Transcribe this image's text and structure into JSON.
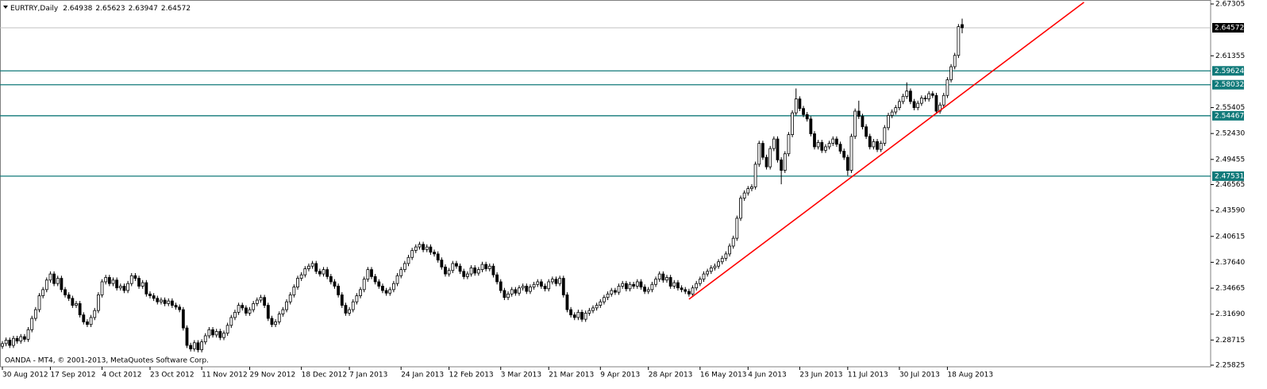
{
  "chart_data": {
    "type": "candlestick",
    "title": "EURTRY,Daily",
    "note": "OANDA - MT4, © 2001-2013, MetaQuotes Software Corp.",
    "categories": [
      "30 Aug 2012",
      null,
      null,
      null,
      null,
      null,
      null,
      null,
      null,
      null,
      null,
      null,
      null,
      "17 Sep 2012",
      null,
      null,
      null,
      null,
      null,
      null,
      null,
      null,
      null,
      null,
      null,
      null,
      null,
      "4 Oct 2012",
      null,
      null,
      null,
      null,
      null,
      null,
      null,
      null,
      null,
      null,
      null,
      null,
      "23 Oct 2012",
      null,
      null,
      null,
      null,
      null,
      null,
      null,
      null,
      null,
      null,
      null,
      null,
      null,
      "11 Nov 2012",
      null,
      null,
      null,
      null,
      null,
      null,
      null,
      null,
      null,
      null,
      null,
      null,
      "29 Nov 2012",
      null,
      null,
      null,
      null,
      null,
      null,
      null,
      null,
      null,
      null,
      null,
      null,
      null,
      "18 Dec 2012",
      null,
      null,
      null,
      null,
      null,
      null,
      null,
      null,
      null,
      null,
      null,
      null,
      "7 Jan 2013",
      null,
      null,
      null,
      null,
      null,
      null,
      null,
      null,
      null,
      null,
      null,
      null,
      null,
      "24 Jan 2013",
      null,
      null,
      null,
      null,
      null,
      null,
      null,
      null,
      null,
      null,
      null,
      null,
      "12 Feb 2013",
      null,
      null,
      null,
      null,
      null,
      null,
      null,
      null,
      null,
      null,
      null,
      null,
      null,
      "3 Mar 2013",
      null,
      null,
      null,
      null,
      null,
      null,
      null,
      null,
      null,
      null,
      null,
      null,
      "21 Mar 2013",
      null,
      null,
      null,
      null,
      null,
      null,
      null,
      null,
      null,
      null,
      null,
      null,
      null,
      "9 Apr 2013",
      null,
      null,
      null,
      null,
      null,
      null,
      null,
      null,
      null,
      null,
      null,
      null,
      "28 Apr 2013",
      null,
      null,
      null,
      null,
      null,
      null,
      null,
      null,
      null,
      null,
      null,
      null,
      null,
      "16 May 2013",
      null,
      null,
      null,
      null,
      null,
      null,
      null,
      null,
      null,
      null,
      null,
      null,
      "4 Jun 2013",
      null,
      null,
      null,
      null,
      null,
      null,
      null,
      null,
      null,
      null,
      null,
      null,
      null,
      "23 Jun 2013",
      null,
      null,
      null,
      null,
      null,
      null,
      null,
      null,
      null,
      null,
      null,
      null,
      "11 Jul 2013",
      null,
      null,
      null,
      null,
      null,
      null,
      null,
      null,
      null,
      null,
      null,
      null,
      null,
      "30 Jul 2013",
      null,
      null,
      null,
      null,
      null,
      null,
      null,
      null,
      null,
      null,
      null,
      null,
      "18 Aug 2013",
      null,
      null,
      null,
      null
    ],
    "open": [
      2.28,
      2.283,
      2.287,
      2.281,
      2.289,
      2.286,
      2.291,
      2.288,
      2.299,
      2.312,
      2.322,
      2.338,
      2.345,
      2.356,
      2.363,
      2.352,
      2.358,
      2.345,
      2.339,
      2.335,
      2.327,
      2.329,
      2.316,
      2.308,
      2.305,
      2.313,
      2.321,
      2.339,
      2.354,
      2.359,
      2.352,
      2.356,
      2.347,
      2.349,
      2.344,
      2.352,
      2.361,
      2.358,
      2.349,
      2.353,
      2.34,
      2.338,
      2.335,
      2.331,
      2.333,
      2.329,
      2.332,
      2.327,
      2.325,
      2.322,
      2.301,
      2.281,
      2.277,
      2.284,
      2.276,
      2.285,
      2.292,
      2.299,
      2.293,
      2.297,
      2.29,
      2.295,
      2.304,
      2.313,
      2.319,
      2.327,
      2.324,
      2.318,
      2.322,
      2.329,
      2.333,
      2.336,
      2.327,
      2.312,
      2.305,
      2.308,
      2.317,
      2.322,
      2.331,
      2.339,
      2.348,
      2.358,
      2.362,
      2.369,
      2.372,
      2.375,
      2.366,
      2.363,
      2.368,
      2.36,
      2.354,
      2.349,
      2.339,
      2.327,
      2.318,
      2.322,
      2.331,
      2.338,
      2.345,
      2.357,
      2.368,
      2.36,
      2.354,
      2.349,
      2.344,
      2.341,
      2.345,
      2.352,
      2.361,
      2.368,
      2.375,
      2.382,
      2.39,
      2.394,
      2.397,
      2.391,
      2.394,
      2.388,
      2.386,
      2.379,
      2.371,
      2.363,
      2.367,
      2.375,
      2.372,
      2.366,
      2.36,
      2.363,
      2.37,
      2.364,
      2.368,
      2.374,
      2.369,
      2.372,
      2.362,
      2.354,
      2.344,
      2.336,
      2.34,
      2.345,
      2.341,
      2.347,
      2.349,
      2.343,
      2.348,
      2.351,
      2.354,
      2.349,
      2.346,
      2.354,
      2.357,
      2.352,
      2.358,
      2.339,
      2.322,
      2.316,
      2.313,
      2.319,
      2.311,
      2.318,
      2.321,
      2.324,
      2.327,
      2.331,
      2.336,
      2.34,
      2.344,
      2.342,
      2.349,
      2.352,
      2.346,
      2.351,
      2.349,
      2.354,
      2.348,
      2.343,
      2.345,
      2.351,
      2.357,
      2.363,
      2.356,
      2.359,
      2.349,
      2.353,
      2.347,
      2.345,
      2.343,
      2.34,
      2.347,
      2.352,
      2.357,
      2.363,
      2.366,
      2.37,
      2.372,
      2.377,
      2.381,
      2.386,
      2.395,
      2.404,
      2.427,
      2.45,
      2.456,
      2.461,
      2.463,
      2.489,
      2.513,
      2.497,
      2.486,
      2.507,
      2.518,
      2.494,
      2.482,
      2.501,
      2.523,
      2.548,
      2.564,
      2.553,
      2.546,
      2.541,
      2.524,
      2.509,
      2.514,
      2.505,
      2.509,
      2.513,
      2.518,
      2.512,
      2.504,
      2.497,
      2.482,
      2.521,
      2.55,
      2.544,
      2.532,
      2.521,
      2.509,
      2.515,
      2.506,
      2.513,
      2.531,
      2.545,
      2.549,
      2.554,
      2.561,
      2.567,
      2.573,
      2.561,
      2.554,
      2.559,
      2.565,
      2.564,
      2.57,
      2.568,
      2.55,
      2.557,
      2.568,
      2.586,
      2.601,
      2.614,
      2.64938
    ],
    "high": [
      2.286,
      2.29,
      2.29,
      2.292,
      2.292,
      2.294,
      2.294,
      2.302,
      2.315,
      2.325,
      2.341,
      2.348,
      2.359,
      2.366,
      2.366,
      2.361,
      2.361,
      2.348,
      2.342,
      2.338,
      2.332,
      2.332,
      2.319,
      2.311,
      2.316,
      2.324,
      2.342,
      2.357,
      2.362,
      2.362,
      2.359,
      2.359,
      2.352,
      2.352,
      2.355,
      2.364,
      2.364,
      2.361,
      2.356,
      2.356,
      2.343,
      2.341,
      2.338,
      2.336,
      2.336,
      2.335,
      2.335,
      2.33,
      2.328,
      2.325,
      2.304,
      2.284,
      2.287,
      2.287,
      2.288,
      2.295,
      2.302,
      2.302,
      2.3,
      2.3,
      2.298,
      2.307,
      2.316,
      2.322,
      2.33,
      2.33,
      2.327,
      2.325,
      2.332,
      2.336,
      2.339,
      2.339,
      2.33,
      2.315,
      2.311,
      2.32,
      2.325,
      2.334,
      2.342,
      2.351,
      2.361,
      2.365,
      2.372,
      2.375,
      2.378,
      2.378,
      2.369,
      2.371,
      2.371,
      2.363,
      2.357,
      2.352,
      2.342,
      2.33,
      2.325,
      2.334,
      2.341,
      2.348,
      2.36,
      2.371,
      2.371,
      2.363,
      2.357,
      2.352,
      2.347,
      2.348,
      2.355,
      2.364,
      2.371,
      2.378,
      2.385,
      2.393,
      2.397,
      2.4,
      2.4,
      2.397,
      2.397,
      2.391,
      2.389,
      2.382,
      2.374,
      2.37,
      2.378,
      2.378,
      2.375,
      2.369,
      2.366,
      2.373,
      2.373,
      2.371,
      2.377,
      2.377,
      2.375,
      2.375,
      2.365,
      2.357,
      2.347,
      2.343,
      2.348,
      2.348,
      2.35,
      2.352,
      2.352,
      2.351,
      2.354,
      2.357,
      2.357,
      2.352,
      2.357,
      2.36,
      2.36,
      2.361,
      2.361,
      2.342,
      2.325,
      2.319,
      2.322,
      2.322,
      2.321,
      2.324,
      2.327,
      2.33,
      2.334,
      2.339,
      2.343,
      2.347,
      2.347,
      2.352,
      2.355,
      2.355,
      2.354,
      2.354,
      2.357,
      2.357,
      2.351,
      2.348,
      2.354,
      2.36,
      2.366,
      2.366,
      2.362,
      2.362,
      2.356,
      2.356,
      2.35,
      2.348,
      2.346,
      2.35,
      2.355,
      2.36,
      2.366,
      2.369,
      2.373,
      2.375,
      2.38,
      2.384,
      2.389,
      2.398,
      2.407,
      2.43,
      2.453,
      2.459,
      2.464,
      2.466,
      2.492,
      2.516,
      2.516,
      2.5,
      2.51,
      2.521,
      2.521,
      2.497,
      2.504,
      2.526,
      2.551,
      2.576,
      2.567,
      2.556,
      2.549,
      2.544,
      2.527,
      2.517,
      2.517,
      2.512,
      2.516,
      2.521,
      2.521,
      2.515,
      2.507,
      2.5,
      2.524,
      2.553,
      2.562,
      2.547,
      2.535,
      2.524,
      2.518,
      2.518,
      2.516,
      2.534,
      2.548,
      2.552,
      2.557,
      2.564,
      2.57,
      2.583,
      2.576,
      2.564,
      2.562,
      2.568,
      2.568,
      2.573,
      2.573,
      2.571,
      2.56,
      2.571,
      2.589,
      2.604,
      2.617,
      2.65,
      2.65623
    ],
    "low": [
      2.277,
      2.28,
      2.278,
      2.278,
      2.283,
      2.283,
      2.285,
      2.285,
      2.296,
      2.309,
      2.319,
      2.335,
      2.342,
      2.353,
      2.349,
      2.349,
      2.342,
      2.336,
      2.332,
      2.324,
      2.324,
      2.313,
      2.305,
      2.302,
      2.302,
      2.31,
      2.318,
      2.336,
      2.351,
      2.349,
      2.349,
      2.344,
      2.344,
      2.341,
      2.341,
      2.349,
      2.355,
      2.346,
      2.346,
      2.337,
      2.335,
      2.332,
      2.328,
      2.328,
      2.326,
      2.326,
      2.324,
      2.322,
      2.319,
      2.298,
      2.278,
      2.274,
      2.274,
      2.273,
      2.273,
      2.282,
      2.289,
      2.29,
      2.29,
      2.287,
      2.287,
      2.292,
      2.301,
      2.31,
      2.316,
      2.321,
      2.315,
      2.315,
      2.319,
      2.326,
      2.33,
      2.324,
      2.309,
      2.302,
      2.302,
      2.305,
      2.314,
      2.319,
      2.328,
      2.336,
      2.345,
      2.355,
      2.359,
      2.366,
      2.369,
      2.363,
      2.36,
      2.36,
      2.357,
      2.351,
      2.346,
      2.336,
      2.324,
      2.315,
      2.315,
      2.319,
      2.328,
      2.335,
      2.342,
      2.354,
      2.357,
      2.351,
      2.346,
      2.341,
      2.338,
      2.338,
      2.342,
      2.349,
      2.358,
      2.365,
      2.372,
      2.379,
      2.387,
      2.391,
      2.388,
      2.388,
      2.385,
      2.383,
      2.376,
      2.368,
      2.36,
      2.36,
      2.364,
      2.369,
      2.363,
      2.357,
      2.357,
      2.36,
      2.361,
      2.361,
      2.365,
      2.366,
      2.366,
      2.359,
      2.351,
      2.341,
      2.333,
      2.333,
      2.337,
      2.338,
      2.338,
      2.344,
      2.34,
      2.34,
      2.345,
      2.348,
      2.346,
      2.343,
      2.343,
      2.351,
      2.349,
      2.349,
      2.336,
      2.319,
      2.313,
      2.31,
      2.31,
      2.308,
      2.308,
      2.315,
      2.318,
      2.321,
      2.324,
      2.328,
      2.333,
      2.337,
      2.339,
      2.339,
      2.346,
      2.343,
      2.343,
      2.346,
      2.346,
      2.345,
      2.34,
      2.34,
      2.342,
      2.348,
      2.354,
      2.353,
      2.353,
      2.346,
      2.346,
      2.344,
      2.342,
      2.34,
      2.337,
      2.337,
      2.344,
      2.349,
      2.354,
      2.36,
      2.363,
      2.367,
      2.369,
      2.374,
      2.378,
      2.383,
      2.392,
      2.401,
      2.424,
      2.447,
      2.453,
      2.458,
      2.46,
      2.486,
      2.494,
      2.483,
      2.483,
      2.504,
      2.491,
      2.466,
      2.479,
      2.498,
      2.52,
      2.545,
      2.55,
      2.543,
      2.538,
      2.521,
      2.506,
      2.506,
      2.502,
      2.502,
      2.506,
      2.51,
      2.509,
      2.501,
      2.494,
      2.476,
      2.479,
      2.518,
      2.541,
      2.529,
      2.518,
      2.506,
      2.506,
      2.503,
      2.503,
      2.51,
      2.528,
      2.542,
      2.546,
      2.551,
      2.558,
      2.564,
      2.558,
      2.551,
      2.551,
      2.556,
      2.561,
      2.561,
      2.565,
      2.547,
      2.547,
      2.554,
      2.565,
      2.583,
      2.598,
      2.611,
      2.63947
    ],
    "close": [
      2.283,
      2.287,
      2.281,
      2.289,
      2.286,
      2.291,
      2.288,
      2.299,
      2.312,
      2.322,
      2.338,
      2.345,
      2.356,
      2.363,
      2.352,
      2.358,
      2.345,
      2.339,
      2.335,
      2.327,
      2.329,
      2.316,
      2.308,
      2.305,
      2.313,
      2.321,
      2.339,
      2.354,
      2.359,
      2.352,
      2.356,
      2.347,
      2.349,
      2.344,
      2.352,
      2.361,
      2.358,
      2.349,
      2.353,
      2.34,
      2.338,
      2.335,
      2.331,
      2.333,
      2.329,
      2.332,
      2.327,
      2.325,
      2.322,
      2.301,
      2.281,
      2.277,
      2.284,
      2.276,
      2.285,
      2.292,
      2.299,
      2.293,
      2.297,
      2.29,
      2.295,
      2.304,
      2.313,
      2.319,
      2.327,
      2.324,
      2.318,
      2.322,
      2.329,
      2.333,
      2.336,
      2.327,
      2.312,
      2.305,
      2.308,
      2.317,
      2.322,
      2.331,
      2.339,
      2.348,
      2.358,
      2.362,
      2.369,
      2.372,
      2.375,
      2.366,
      2.363,
      2.368,
      2.36,
      2.354,
      2.349,
      2.339,
      2.327,
      2.318,
      2.322,
      2.331,
      2.338,
      2.345,
      2.357,
      2.368,
      2.36,
      2.354,
      2.349,
      2.344,
      2.341,
      2.345,
      2.352,
      2.361,
      2.368,
      2.375,
      2.382,
      2.39,
      2.394,
      2.397,
      2.391,
      2.394,
      2.388,
      2.386,
      2.379,
      2.371,
      2.363,
      2.367,
      2.375,
      2.372,
      2.366,
      2.36,
      2.363,
      2.37,
      2.364,
      2.368,
      2.374,
      2.369,
      2.372,
      2.362,
      2.354,
      2.344,
      2.336,
      2.34,
      2.345,
      2.341,
      2.347,
      2.349,
      2.343,
      2.348,
      2.351,
      2.354,
      2.349,
      2.346,
      2.354,
      2.357,
      2.352,
      2.358,
      2.339,
      2.322,
      2.316,
      2.313,
      2.319,
      2.311,
      2.318,
      2.321,
      2.324,
      2.327,
      2.331,
      2.336,
      2.34,
      2.344,
      2.342,
      2.349,
      2.352,
      2.346,
      2.351,
      2.349,
      2.354,
      2.348,
      2.343,
      2.345,
      2.351,
      2.357,
      2.363,
      2.356,
      2.359,
      2.349,
      2.353,
      2.347,
      2.345,
      2.343,
      2.34,
      2.347,
      2.352,
      2.357,
      2.363,
      2.366,
      2.37,
      2.372,
      2.377,
      2.381,
      2.386,
      2.395,
      2.404,
      2.427,
      2.45,
      2.456,
      2.461,
      2.463,
      2.489,
      2.513,
      2.497,
      2.486,
      2.507,
      2.518,
      2.494,
      2.482,
      2.501,
      2.523,
      2.548,
      2.564,
      2.553,
      2.546,
      2.541,
      2.524,
      2.509,
      2.514,
      2.505,
      2.509,
      2.513,
      2.518,
      2.512,
      2.504,
      2.497,
      2.482,
      2.521,
      2.55,
      2.544,
      2.532,
      2.521,
      2.509,
      2.515,
      2.506,
      2.513,
      2.531,
      2.545,
      2.549,
      2.554,
      2.561,
      2.567,
      2.573,
      2.561,
      2.554,
      2.559,
      2.565,
      2.564,
      2.57,
      2.568,
      2.55,
      2.557,
      2.568,
      2.586,
      2.601,
      2.614,
      2.647,
      2.64572
    ],
    "up_color": "#ffffff",
    "down_color": "#000000",
    "ylim": [
      2.25643,
      2.67761
    ],
    "yticks": [
      2.67305,
      2.61355,
      2.55405,
      {
        "value": 2.5243,
        "label": "2.52430"
      },
      2.49455,
      2.46565,
      {
        "value": 2.4359,
        "label": "2.43590"
      },
      2.40615,
      {
        "value": 2.3764,
        "label": "2.37640"
      },
      2.34665,
      {
        "value": 2.3169,
        "label": "2.31690"
      },
      2.28715,
      2.25825
    ],
    "levels": [
      2.59624,
      2.58032,
      2.54467,
      2.47531
    ],
    "level_color": "#117a7a",
    "bid": 2.64572,
    "bid_color": "#000000",
    "trendline": {
      "x": [
        186,
        293
      ],
      "y": [
        2.334,
        2.675
      ],
      "color": "#ff0000"
    }
  }
}
